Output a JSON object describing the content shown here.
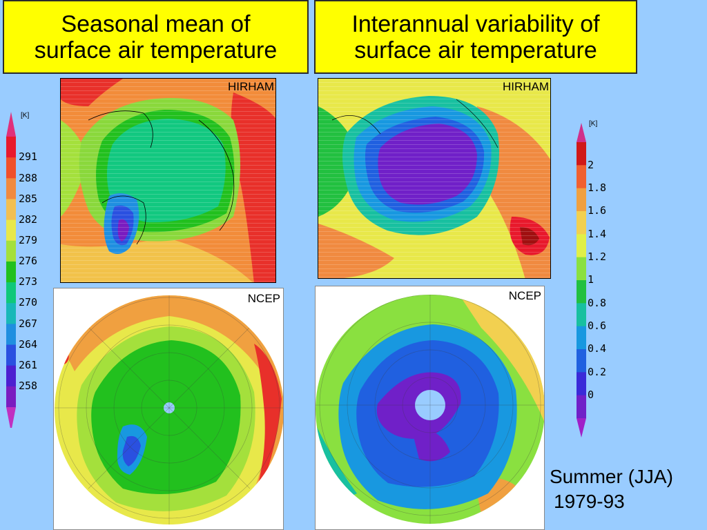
{
  "titles": {
    "left": [
      "Seasonal mean of",
      "surface air temperature"
    ],
    "right": [
      "Interannual variability of",
      "surface air temperature"
    ]
  },
  "panels": {
    "hirham_left": "HIRHAM",
    "hirham_right": "HIRHAM",
    "ncep_left": "NCEP",
    "ncep_right": "NCEP"
  },
  "colorbar_left": {
    "unit": "[K]",
    "ticks": [
      "291",
      "288",
      "285",
      "282",
      "279",
      "276",
      "273",
      "270",
      "267",
      "264",
      "261",
      "258"
    ],
    "colors": [
      "#e8192c",
      "#f0502a",
      "#f08a40",
      "#f2bf52",
      "#e8e84a",
      "#a4e03c",
      "#22c01e",
      "#10c87a",
      "#18b8b8",
      "#1f8fe0",
      "#2a50e0",
      "#4c1fd0",
      "#7a1cc0"
    ]
  },
  "colorbar_right": {
    "unit": "[K]",
    "ticks": [
      "2",
      "1.8",
      "1.6",
      "1.4",
      "1.2",
      "1",
      "0.8",
      "0.6",
      "0.4",
      "0.2",
      "0"
    ],
    "colors": [
      "#d01818",
      "#f06030",
      "#f0a040",
      "#f2d050",
      "#e0f048",
      "#8ae040",
      "#22c040",
      "#18c0a0",
      "#1898e0",
      "#2060e0",
      "#3a2ad8",
      "#7020c8"
    ]
  },
  "season": {
    "line1": "Summer (JJA)",
    "line2": "1979-93"
  }
}
